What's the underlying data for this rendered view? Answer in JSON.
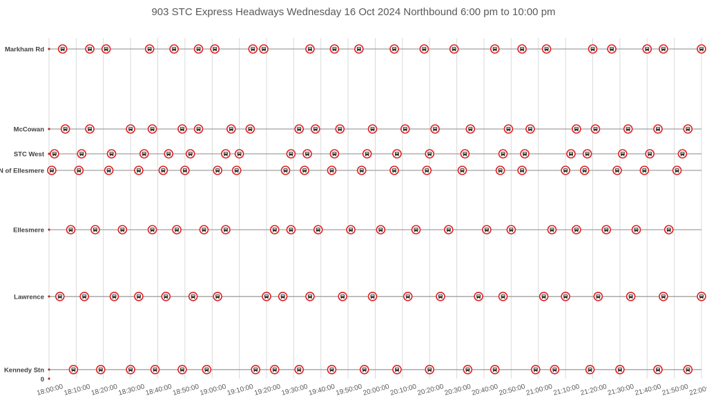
{
  "chart_data": {
    "type": "scatter",
    "title": "903 STC Express Headways Wednesday 16 Oct 2024 Northbound 6:00 pm to 10:00 pm",
    "xlabel": "",
    "ylabel": "",
    "xlim": [
      "18:00:00",
      "22:00:00"
    ],
    "ylim": [
      0,
      12
    ],
    "x_ticks": [
      "18:00:00",
      "18:10:00",
      "18:20:00",
      "18:30:00",
      "18:40:00",
      "18:50:00",
      "19:00:00",
      "19:10:00",
      "19:20:00",
      "19:30:00",
      "19:40:00",
      "19:50:00",
      "20:00:00",
      "20:10:00",
      "20:20:00",
      "20:30:00",
      "20:40:00",
      "20:50:00",
      "21:00:00",
      "21:10:00",
      "21:20:00",
      "21:30:00",
      "21:40:00",
      "21:50:00",
      "22:00:00"
    ],
    "y_zero_label": "0",
    "grid": "vertical",
    "marker": "bus-icon",
    "colors": {
      "marker": "#e02020",
      "line": "#a0a0a0",
      "grid": "#d9d9d9",
      "text": "#595959"
    },
    "series": [
      {
        "name": "Markham Rd",
        "y": 11.95,
        "times": [
          "18:05",
          "18:15",
          "18:21",
          "18:37",
          "18:46",
          "18:55",
          "19:01",
          "19:15",
          "19:19",
          "19:36",
          "19:45",
          "19:54",
          "20:07",
          "20:18",
          "20:29",
          "20:44",
          "20:54",
          "21:03",
          "21:20",
          "21:27",
          "21:40",
          "21:46",
          "22:00"
        ]
      },
      {
        "name": "McCowan",
        "y": 9.05,
        "times": [
          "18:06",
          "18:15",
          "18:30",
          "18:38",
          "18:49",
          "18:55",
          "19:07",
          "19:14",
          "19:32",
          "19:38",
          "19:47",
          "19:59",
          "20:11",
          "20:22",
          "20:35",
          "20:49",
          "20:57",
          "21:14",
          "21:21",
          "21:33",
          "21:44",
          "21:55"
        ]
      },
      {
        "name": "STC West",
        "y": 8.15,
        "times": [
          "18:02",
          "18:12",
          "18:23",
          "18:35",
          "18:44",
          "18:52",
          "19:05",
          "19:10",
          "19:29",
          "19:35",
          "19:45",
          "19:57",
          "20:08",
          "20:20",
          "20:33",
          "20:47",
          "20:55",
          "21:12",
          "21:18",
          "21:31",
          "21:41",
          "21:53"
        ]
      },
      {
        "name": "Brimley N of Ellesmere",
        "y": 7.55,
        "times": [
          "18:01",
          "18:11",
          "18:22",
          "18:33",
          "18:42",
          "18:50",
          "19:02",
          "19:09",
          "19:27",
          "19:34",
          "19:44",
          "19:55",
          "20:07",
          "20:19",
          "20:32",
          "20:46",
          "20:54",
          "21:10",
          "21:17",
          "21:29",
          "21:39",
          "21:51"
        ]
      },
      {
        "name": "Ellesmere",
        "y": 5.4,
        "times": [
          "18:08",
          "18:17",
          "18:27",
          "18:38",
          "18:47",
          "18:57",
          "19:05",
          "19:23",
          "19:29",
          "19:39",
          "19:51",
          "20:02",
          "20:15",
          "20:27",
          "20:41",
          "20:50",
          "21:05",
          "21:14",
          "21:25",
          "21:36",
          "21:48"
        ]
      },
      {
        "name": "Lawrence",
        "y": 2.98,
        "times": [
          "18:04",
          "18:13",
          "18:24",
          "18:33",
          "18:43",
          "18:53",
          "19:02",
          "19:20",
          "19:26",
          "19:36",
          "19:48",
          "19:59",
          "20:12",
          "20:24",
          "20:38",
          "20:47",
          "21:02",
          "21:10",
          "21:22",
          "21:34",
          "21:46",
          "22:00"
        ]
      },
      {
        "name": "Kennedy Stn",
        "y": 0.33,
        "times": [
          "18:09",
          "18:19",
          "18:30",
          "18:39",
          "18:49",
          "18:58",
          "19:16",
          "19:23",
          "19:32",
          "19:44",
          "19:56",
          "20:08",
          "20:20",
          "20:34",
          "20:44",
          "20:59",
          "21:06",
          "21:19",
          "21:30",
          "21:44",
          "21:55"
        ]
      }
    ]
  }
}
